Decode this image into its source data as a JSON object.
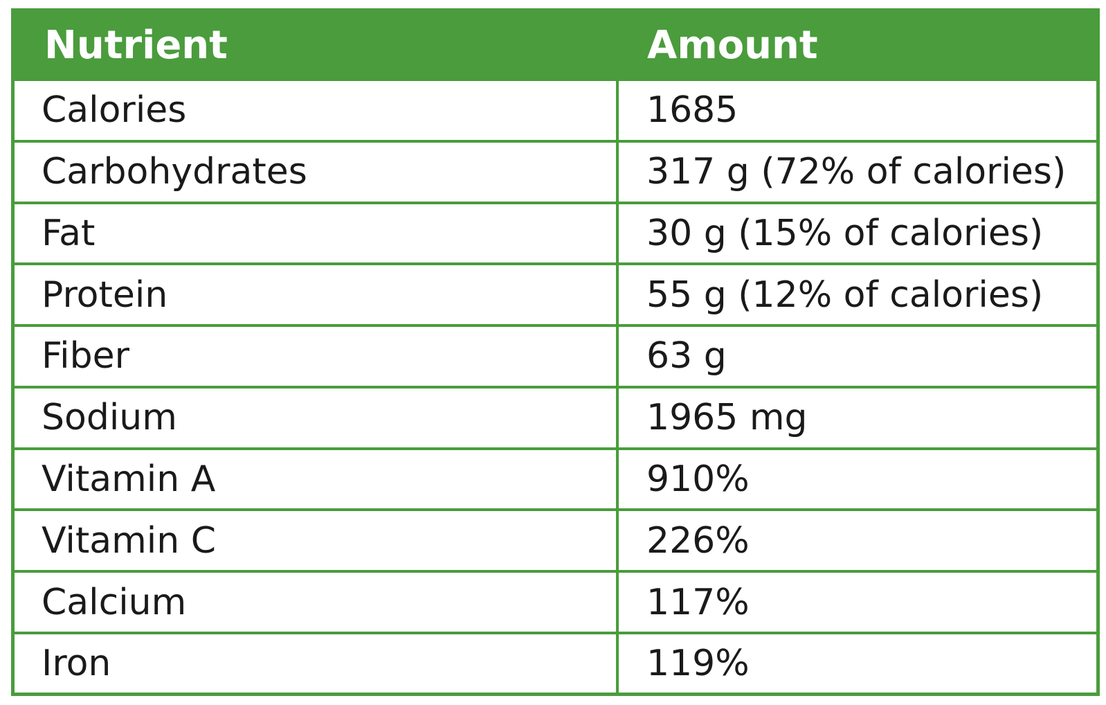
{
  "accent_color": "#4a9c3c",
  "header": {
    "nutrient": "Nutrient",
    "amount": "Amount"
  },
  "rows": [
    {
      "nutrient": "Calories",
      "amount": "1685"
    },
    {
      "nutrient": "Carbohydrates",
      "amount": "317 g (72% of calories)"
    },
    {
      "nutrient": "Fat",
      "amount": "30 g (15% of calories)"
    },
    {
      "nutrient": "Protein",
      "amount": "55 g (12% of calories)"
    },
    {
      "nutrient": "Fiber",
      "amount": "63 g"
    },
    {
      "nutrient": "Sodium",
      "amount": "1965 mg"
    },
    {
      "nutrient": "Vitamin A",
      "amount": "910%"
    },
    {
      "nutrient": "Vitamin C",
      "amount": "226%"
    },
    {
      "nutrient": "Calcium",
      "amount": "117%"
    },
    {
      "nutrient": "Iron",
      "amount": "119%"
    }
  ]
}
